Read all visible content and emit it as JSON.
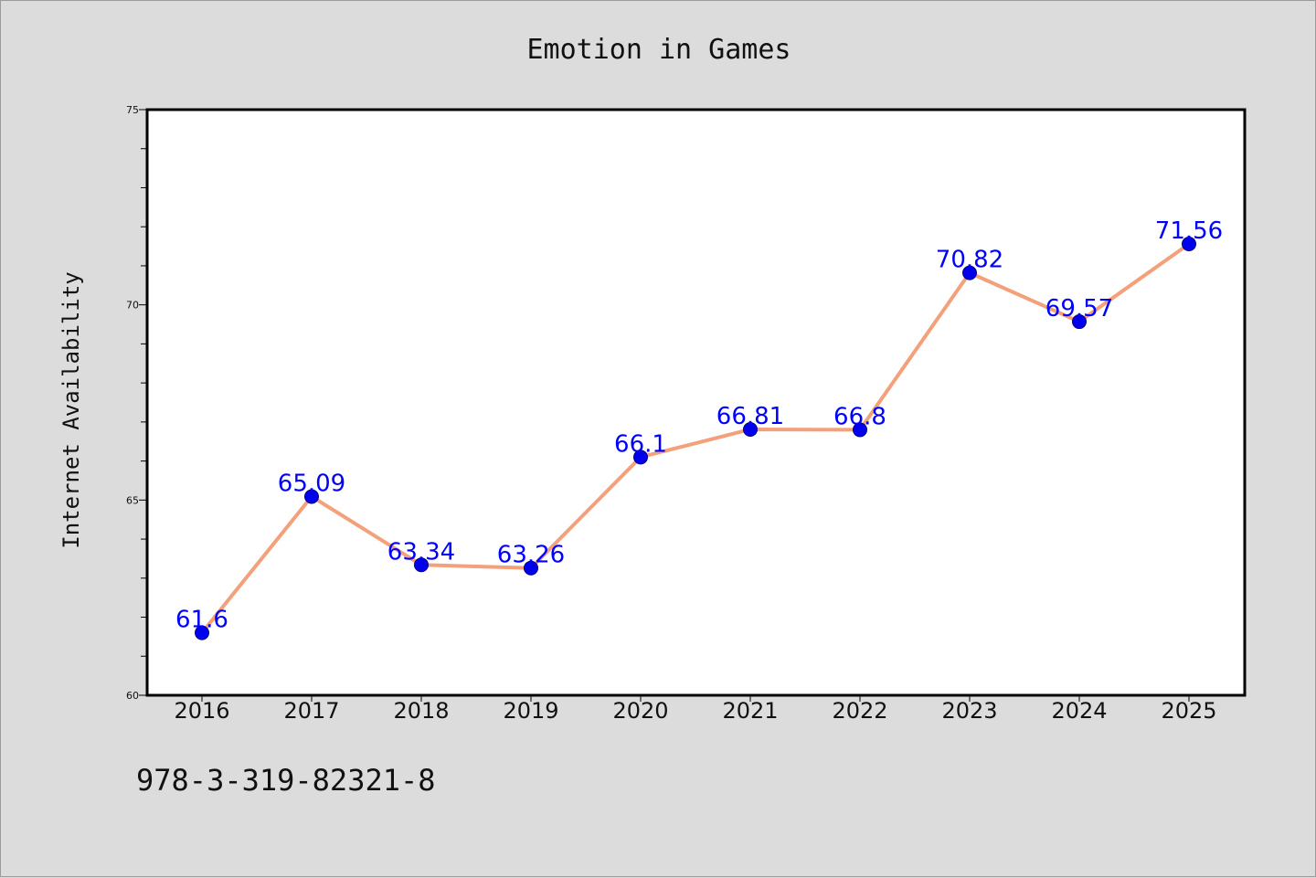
{
  "chart_data": {
    "type": "line",
    "title": "Emotion in Games",
    "xlabel": "",
    "ylabel": "Internet Availability",
    "x": [
      "2016",
      "2017",
      "2018",
      "2019",
      "2020",
      "2021",
      "2022",
      "2023",
      "2024",
      "2025"
    ],
    "series": [
      {
        "values": [
          61.6,
          65.09,
          63.34,
          63.26,
          66.1,
          66.81,
          66.8,
          70.82,
          69.57,
          71.56
        ],
        "labels": [
          "61.6",
          "65.09",
          "63.34",
          "63.26",
          "66.1",
          "66.81",
          "66.8",
          "70.82",
          "69.57",
          "71.56"
        ]
      }
    ],
    "ylim": [
      60,
      75
    ],
    "yticks": [
      "60",
      "65",
      "70",
      "75"
    ],
    "grid": false,
    "legend": "none",
    "colors": {
      "line": "#f4a07a",
      "marker": "#0000ee",
      "label": "#0000ff",
      "plot_bg": "#ffffff",
      "page_bg": "#dcdcdc"
    }
  },
  "footnote": "978-3-319-82321-8"
}
